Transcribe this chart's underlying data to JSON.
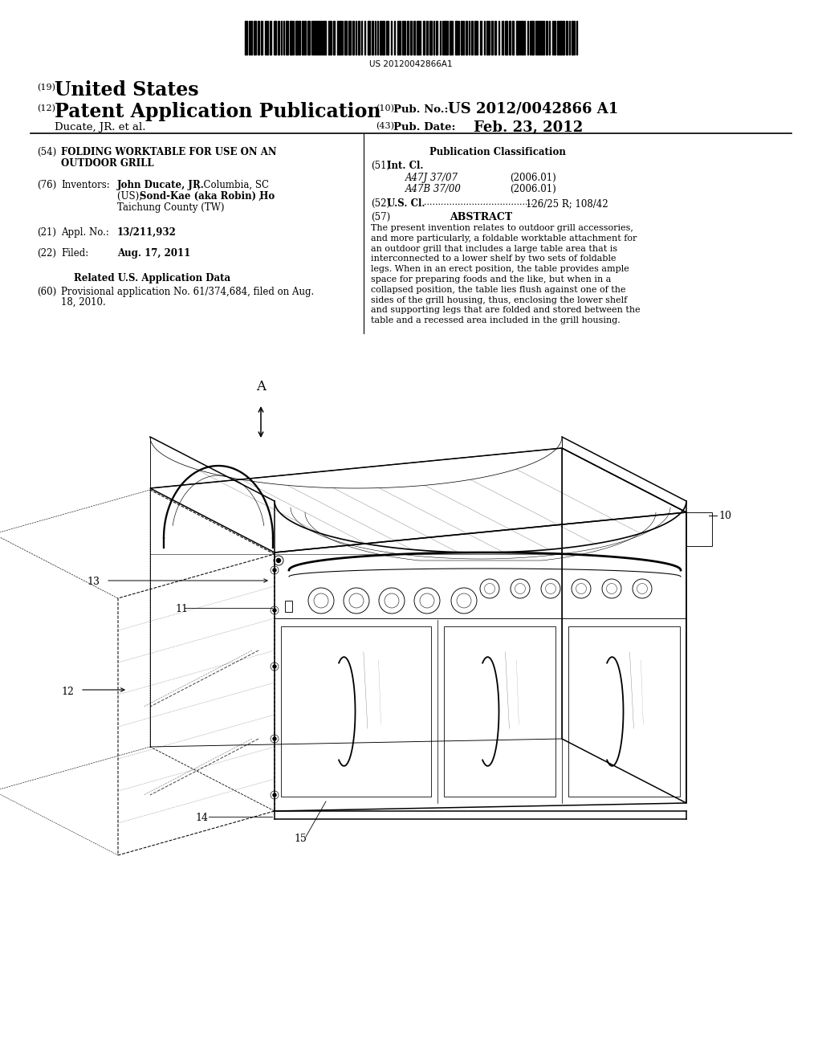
{
  "background_color": "#ffffff",
  "barcode_text": "US 20120042866A1",
  "label_19": "(19)",
  "united_states": "United States",
  "label_12": "(12)",
  "patent_app_pub": "Patent Application Publication",
  "label_10": "(10)",
  "pub_no_label": "Pub. No.:",
  "pub_no_value": "US 2012/0042866 A1",
  "inventor_line": "Ducate, JR. et al.",
  "label_43": "(43)",
  "pub_date_label": "Pub. Date:",
  "pub_date_value": "Feb. 23, 2012",
  "label_54": "(54)",
  "title_line1": "FOLDING WORKTABLE FOR USE ON AN",
  "title_line2": "OUTDOOR GRILL",
  "pub_class_label": "Publication Classification",
  "label_76": "(76)",
  "inventors_label": "Inventors:",
  "inventor_name1_bold": "John Ducate, JR.",
  "inventor_name1_rest": ", Columbia, SC",
  "inventor_name2_pre": "(US); ",
  "inventor_name2_bold": "Sond-Kae (aka Robin) Ho",
  "inventor_name2_rest": ",",
  "inventor_addr4": "Taichung County (TW)",
  "label_51": "(51)",
  "int_cl_label": "Int. Cl.",
  "int_cl1": "A47J 37/07",
  "int_cl1_year": "(2006.01)",
  "int_cl2": "A47B 37/00",
  "int_cl2_year": "(2006.01)",
  "label_52": "(52)",
  "us_cl_label": "U.S. Cl.",
  "us_cl_dots": ".......................................",
  "us_cl_value": "126/25 R; 108/42",
  "label_21": "(21)",
  "appl_no_label": "Appl. No.:",
  "appl_no_value": "13/211,932",
  "label_57": "(57)",
  "abstract_label": "ABSTRACT",
  "abstract_text": "The present invention relates to outdoor grill accessories, and more particularly, a foldable worktable attachment for an outdoor grill that includes a large table area that is interconnected to a lower shelf by two sets of foldable legs. When in an erect position, the table provides ample space for preparing foods and the like, but when in a collapsed position, the table lies flush against one of the sides of the grill housing, thus, enclosing the lower shelf and supporting legs that are folded and stored between the table and a recessed area included in the grill housing.",
  "label_22": "(22)",
  "filed_label": "Filed:",
  "filed_value": "Aug. 17, 2011",
  "related_data_header": "Related U.S. Application Data",
  "label_60": "(60)",
  "prov_line1": "Provisional application No. 61/374,684, filed on Aug.",
  "prov_line2": "18, 2010.",
  "ref_A": "A",
  "ref_10": "10",
  "ref_11": "11",
  "ref_12": "12",
  "ref_13": "13",
  "ref_14": "14",
  "ref_15": "15"
}
